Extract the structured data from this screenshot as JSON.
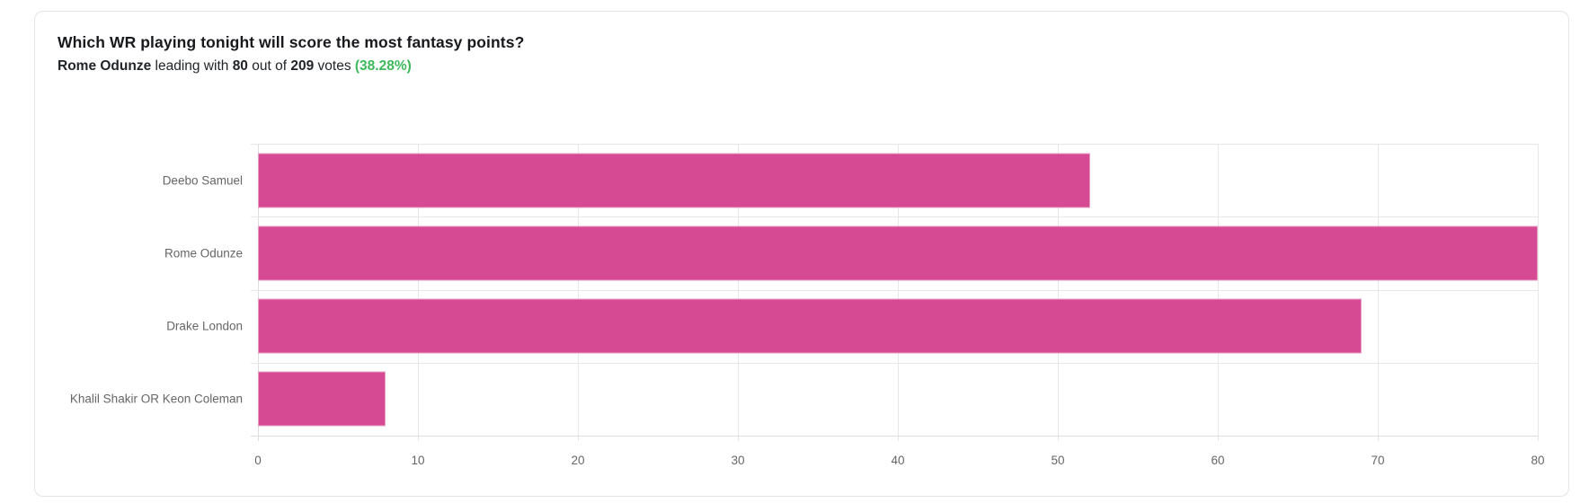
{
  "header": {
    "title": "Which WR playing tonight will score the most fantasy points?",
    "summary": {
      "leader": "Rome Odunze",
      "leading_with": " leading with ",
      "leader_votes": "80",
      "out_of": " out of ",
      "total_votes": "209",
      "votes_word": " votes ",
      "percent": "(38.28%)",
      "percent_color": "#3eb95b"
    }
  },
  "chart_data": {
    "type": "bar",
    "orientation": "horizontal",
    "title": "Which WR playing tonight will score the most fantasy points?",
    "categories": [
      "Deebo Samuel",
      "Rome Odunze",
      "Drake London",
      "Khalil Shakir OR Keon Coleman"
    ],
    "values": [
      52,
      80,
      69,
      8
    ],
    "total_votes": 209,
    "xlabel": "",
    "ylabel": "",
    "xlim": [
      0,
      80
    ],
    "xticks": [
      0,
      10,
      20,
      30,
      40,
      50,
      60,
      70,
      80
    ],
    "grid": true,
    "legend": false,
    "bar_color": "#d64a94",
    "bar_border_color": "#e9a0c8",
    "grid_color": "#e7e7e7",
    "axis_line_color": "#dedede",
    "label_color": "#666666"
  }
}
